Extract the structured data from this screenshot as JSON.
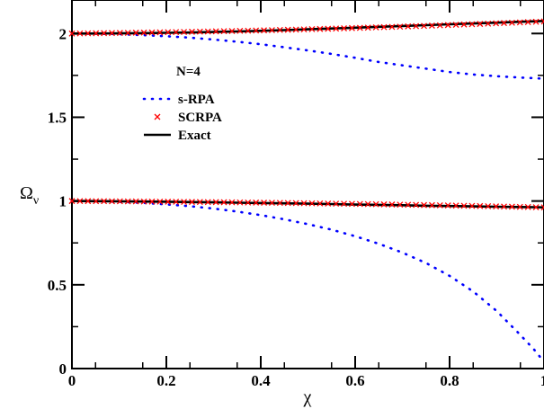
{
  "chart_data": {
    "type": "line",
    "title": "",
    "xlabel": "χ",
    "ylabel_main": "Ω",
    "ylabel_sub": "ν",
    "xlim": [
      0,
      1
    ],
    "ylim": [
      0,
      2.2
    ],
    "x_ticks": [
      {
        "value": 0,
        "label": "0"
      },
      {
        "value": 0.2,
        "label": "0.2"
      },
      {
        "value": 0.4,
        "label": "0.4"
      },
      {
        "value": 0.6,
        "label": "0.6"
      },
      {
        "value": 0.8,
        "label": "0.8"
      },
      {
        "value": 1,
        "label": "1"
      }
    ],
    "y_ticks": [
      {
        "value": 0,
        "label": "0"
      },
      {
        "value": 0.5,
        "label": "0.5"
      },
      {
        "value": 1,
        "label": "1"
      },
      {
        "value": 1.5,
        "label": "1.5"
      },
      {
        "value": 2,
        "label": "2"
      }
    ],
    "annotation": "N=4",
    "legend_position": "upper-left-center",
    "legend": [
      {
        "label": "s-RPA",
        "style": "dotted",
        "color": "#0000ff"
      },
      {
        "label": "SCRPA",
        "style": "x-marker",
        "color": "#ff0000"
      },
      {
        "label": "Exact",
        "style": "solid",
        "color": "#000000"
      }
    ],
    "grid": false,
    "x": [
      0,
      0.05,
      0.1,
      0.15,
      0.2,
      0.25,
      0.3,
      0.35,
      0.4,
      0.45,
      0.5,
      0.55,
      0.6,
      0.65,
      0.7,
      0.75,
      0.8,
      0.85,
      0.9,
      0.95,
      0.98,
      1.0
    ],
    "series": [
      {
        "legend": "s-RPA",
        "level": 2,
        "values": [
          2.0,
          1.999,
          1.996,
          1.99,
          1.984,
          1.975,
          1.964,
          1.951,
          1.936,
          1.918,
          1.899,
          1.878,
          1.855,
          1.83,
          1.81,
          1.79,
          1.77,
          1.755,
          1.745,
          1.737,
          1.733,
          1.73
        ]
      },
      {
        "legend": "s-RPA",
        "level": 1,
        "values": [
          1.0,
          0.999,
          0.995,
          0.989,
          0.98,
          0.969,
          0.955,
          0.937,
          0.916,
          0.891,
          0.862,
          0.829,
          0.79,
          0.745,
          0.692,
          0.63,
          0.553,
          0.46,
          0.343,
          0.2,
          0.11,
          0.04
        ]
      },
      {
        "legend": "Exact",
        "level": 2,
        "values": [
          2.0,
          2.0,
          2.001,
          2.002,
          2.004,
          2.006,
          2.009,
          2.012,
          2.016,
          2.02,
          2.025,
          2.03,
          2.035,
          2.04,
          2.045,
          2.05,
          2.055,
          2.06,
          2.065,
          2.07,
          2.073,
          2.075
        ]
      },
      {
        "legend": "Exact",
        "level": 1,
        "values": [
          1.0,
          0.999,
          0.998,
          0.997,
          0.996,
          0.994,
          0.992,
          0.99,
          0.988,
          0.986,
          0.984,
          0.982,
          0.979,
          0.977,
          0.975,
          0.972,
          0.97,
          0.968,
          0.966,
          0.964,
          0.963,
          0.962
        ]
      }
    ],
    "scrpa_points": {
      "level2": {
        "x_start": 0,
        "x_end": 1,
        "count": 60,
        "y_start": 2.0,
        "y_end": 2.072
      },
      "level1": {
        "x_start": 0,
        "x_end": 1,
        "count": 60,
        "y_start": 1.0,
        "y_end": 0.962
      }
    }
  }
}
